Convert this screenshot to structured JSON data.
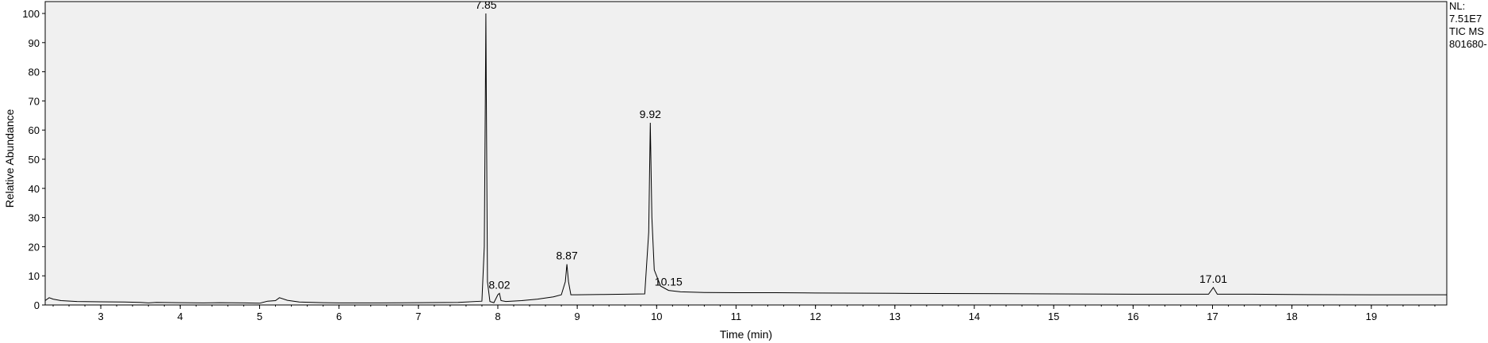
{
  "chart_data": {
    "type": "line",
    "xlabel": "Time (min)",
    "ylabel": "Relative Abundance",
    "xlim": [
      2.3,
      19.95
    ],
    "ylim": [
      0,
      100
    ],
    "x_ticks": [
      3,
      4,
      5,
      6,
      7,
      8,
      9,
      10,
      11,
      12,
      13,
      14,
      15,
      16,
      17,
      18,
      19
    ],
    "y_ticks": [
      0,
      10,
      20,
      30,
      40,
      50,
      60,
      70,
      80,
      90,
      100
    ],
    "grid": false,
    "background_color": "#f0f0f0",
    "line_color": "#000000",
    "side_info": [
      "NL:",
      "7.51E7",
      "TIC  MS",
      "801680-"
    ],
    "peaks": [
      {
        "rt": 7.85,
        "label": "7.85",
        "height": 100
      },
      {
        "rt": 8.02,
        "label": "8.02",
        "height": 4
      },
      {
        "rt": 8.87,
        "label": "8.87",
        "height": 14
      },
      {
        "rt": 9.92,
        "label": "9.92",
        "height": 62.5
      },
      {
        "rt": 10.15,
        "label": "10.15",
        "height": 5
      },
      {
        "rt": 17.01,
        "label": "17.01",
        "height": 6
      }
    ],
    "series": [
      {
        "x": [
          2.3,
          2.35,
          2.4,
          2.5,
          2.7,
          3.0,
          3.3,
          3.5,
          3.6,
          3.7,
          4.0,
          4.3,
          4.5,
          4.8,
          5.0,
          5.1,
          5.2,
          5.25,
          5.35,
          5.5,
          5.8,
          6.0,
          6.5,
          7.0,
          7.5,
          7.8,
          7.83,
          7.845,
          7.85,
          7.855,
          7.87,
          7.9,
          7.95,
          8.0,
          8.02,
          8.04,
          8.1,
          8.3,
          8.5,
          8.7,
          8.8,
          8.85,
          8.87,
          8.89,
          8.92,
          9.0,
          9.3,
          9.6,
          9.85,
          9.9,
          9.92,
          9.94,
          9.97,
          10.05,
          10.15,
          10.3,
          10.6,
          11.0,
          11.5,
          12.0,
          13.0,
          14.0,
          15.0,
          16.0,
          16.95,
          17.01,
          17.06,
          17.5,
          18.0,
          19.0,
          19.95
        ],
        "y": [
          1.5,
          2.5,
          2,
          1.5,
          1.2,
          1.1,
          1.0,
          0.9,
          0.7,
          0.9,
          0.8,
          0.7,
          0.8,
          0.7,
          0.6,
          1.3,
          1.5,
          2.5,
          1.6,
          1.0,
          0.8,
          0.7,
          0.7,
          0.8,
          0.9,
          1.3,
          20,
          78,
          100,
          75,
          8,
          1.2,
          0.8,
          3.5,
          4,
          1.5,
          1.2,
          1.5,
          2,
          2.8,
          3.5,
          8,
          14,
          8,
          3.5,
          3.5,
          3.6,
          3.7,
          3.8,
          25,
          62.5,
          30,
          12,
          6.5,
          5,
          4.5,
          4.3,
          4.2,
          4.2,
          4.1,
          4.0,
          3.9,
          3.8,
          3.7,
          3.7,
          6,
          3.7,
          3.7,
          3.6,
          3.5,
          3.5
        ]
      }
    ]
  }
}
